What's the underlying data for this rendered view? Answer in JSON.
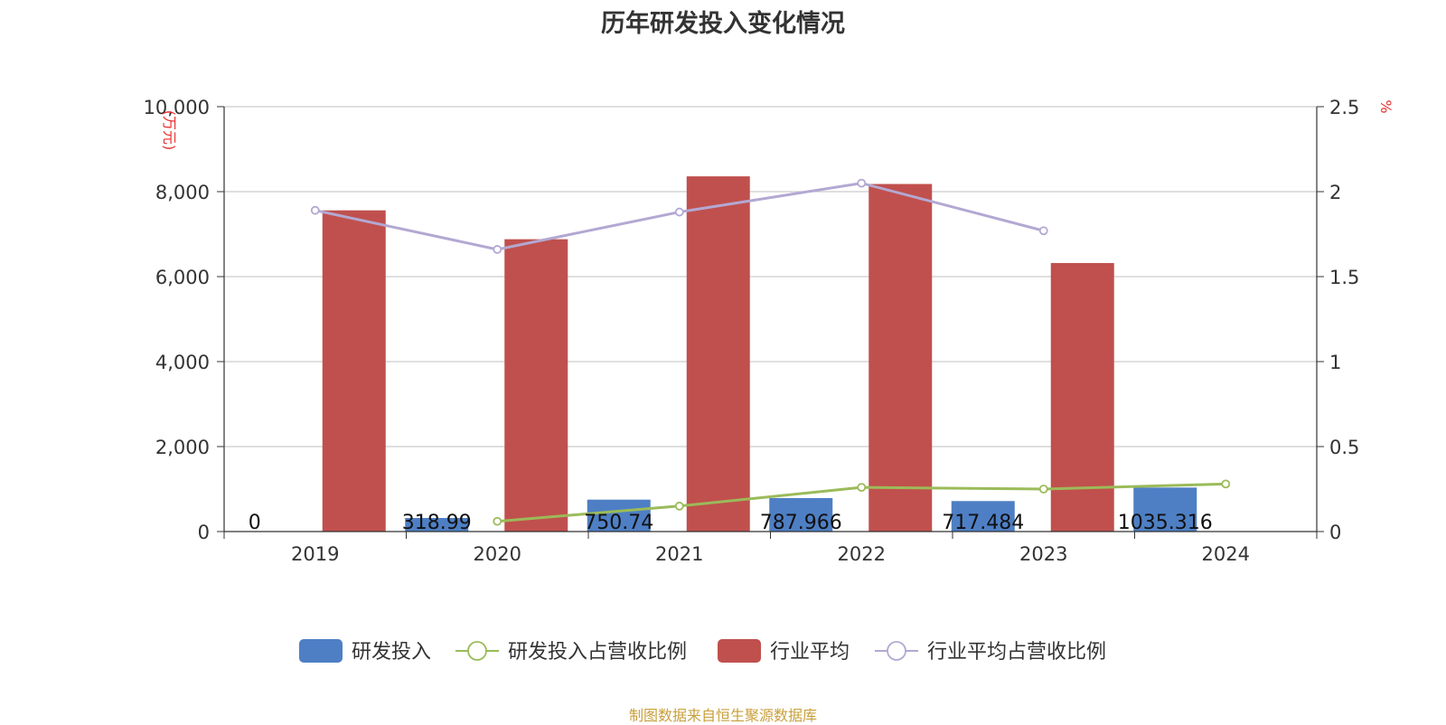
{
  "chart_data": {
    "type": "bar",
    "title": "历年研发投入变化情况",
    "categories": [
      "2019",
      "2020",
      "2021",
      "2022",
      "2023",
      "2024"
    ],
    "y_left": {
      "label": "(万元)",
      "min": 0,
      "max": 10000,
      "ticks": [
        0,
        2000,
        4000,
        6000,
        8000,
        10000
      ],
      "tick_labels": [
        "0",
        "2,000",
        "4,000",
        "6,000",
        "8,000",
        "10,000"
      ]
    },
    "y_right": {
      "label": "%",
      "min": 0,
      "max": 2.5,
      "ticks": [
        0,
        0.5,
        1,
        1.5,
        2,
        2.5
      ],
      "tick_labels": [
        "0",
        "0.5",
        "1",
        "1.5",
        "2",
        "2.5"
      ]
    },
    "grid": true,
    "legend_position": "bottom",
    "series": [
      {
        "name": "研发投入",
        "type": "bar",
        "axis": "left",
        "color": "#4e7fc4",
        "values": [
          0,
          318.99,
          750.74,
          787.966,
          717.484,
          1035.316
        ],
        "labels": [
          "0",
          "318.99",
          "750.74",
          "787.966",
          "717.484",
          "1035.316"
        ]
      },
      {
        "name": "研发投入占营收比例",
        "type": "line",
        "axis": "right",
        "color": "#9bbb59",
        "values": [
          null,
          0.06,
          0.15,
          0.26,
          0.25,
          0.28
        ]
      },
      {
        "name": "行业平均",
        "type": "bar",
        "axis": "left",
        "color": "#c0504d",
        "values": [
          7560,
          6880,
          8360,
          8180,
          6320,
          null
        ]
      },
      {
        "name": "行业平均占营收比例",
        "type": "line",
        "axis": "right",
        "color": "#b3a8d2",
        "values": [
          1.89,
          1.66,
          1.88,
          2.05,
          1.77,
          null
        ]
      }
    ]
  },
  "footer": "制图数据来自恒生聚源数据库"
}
